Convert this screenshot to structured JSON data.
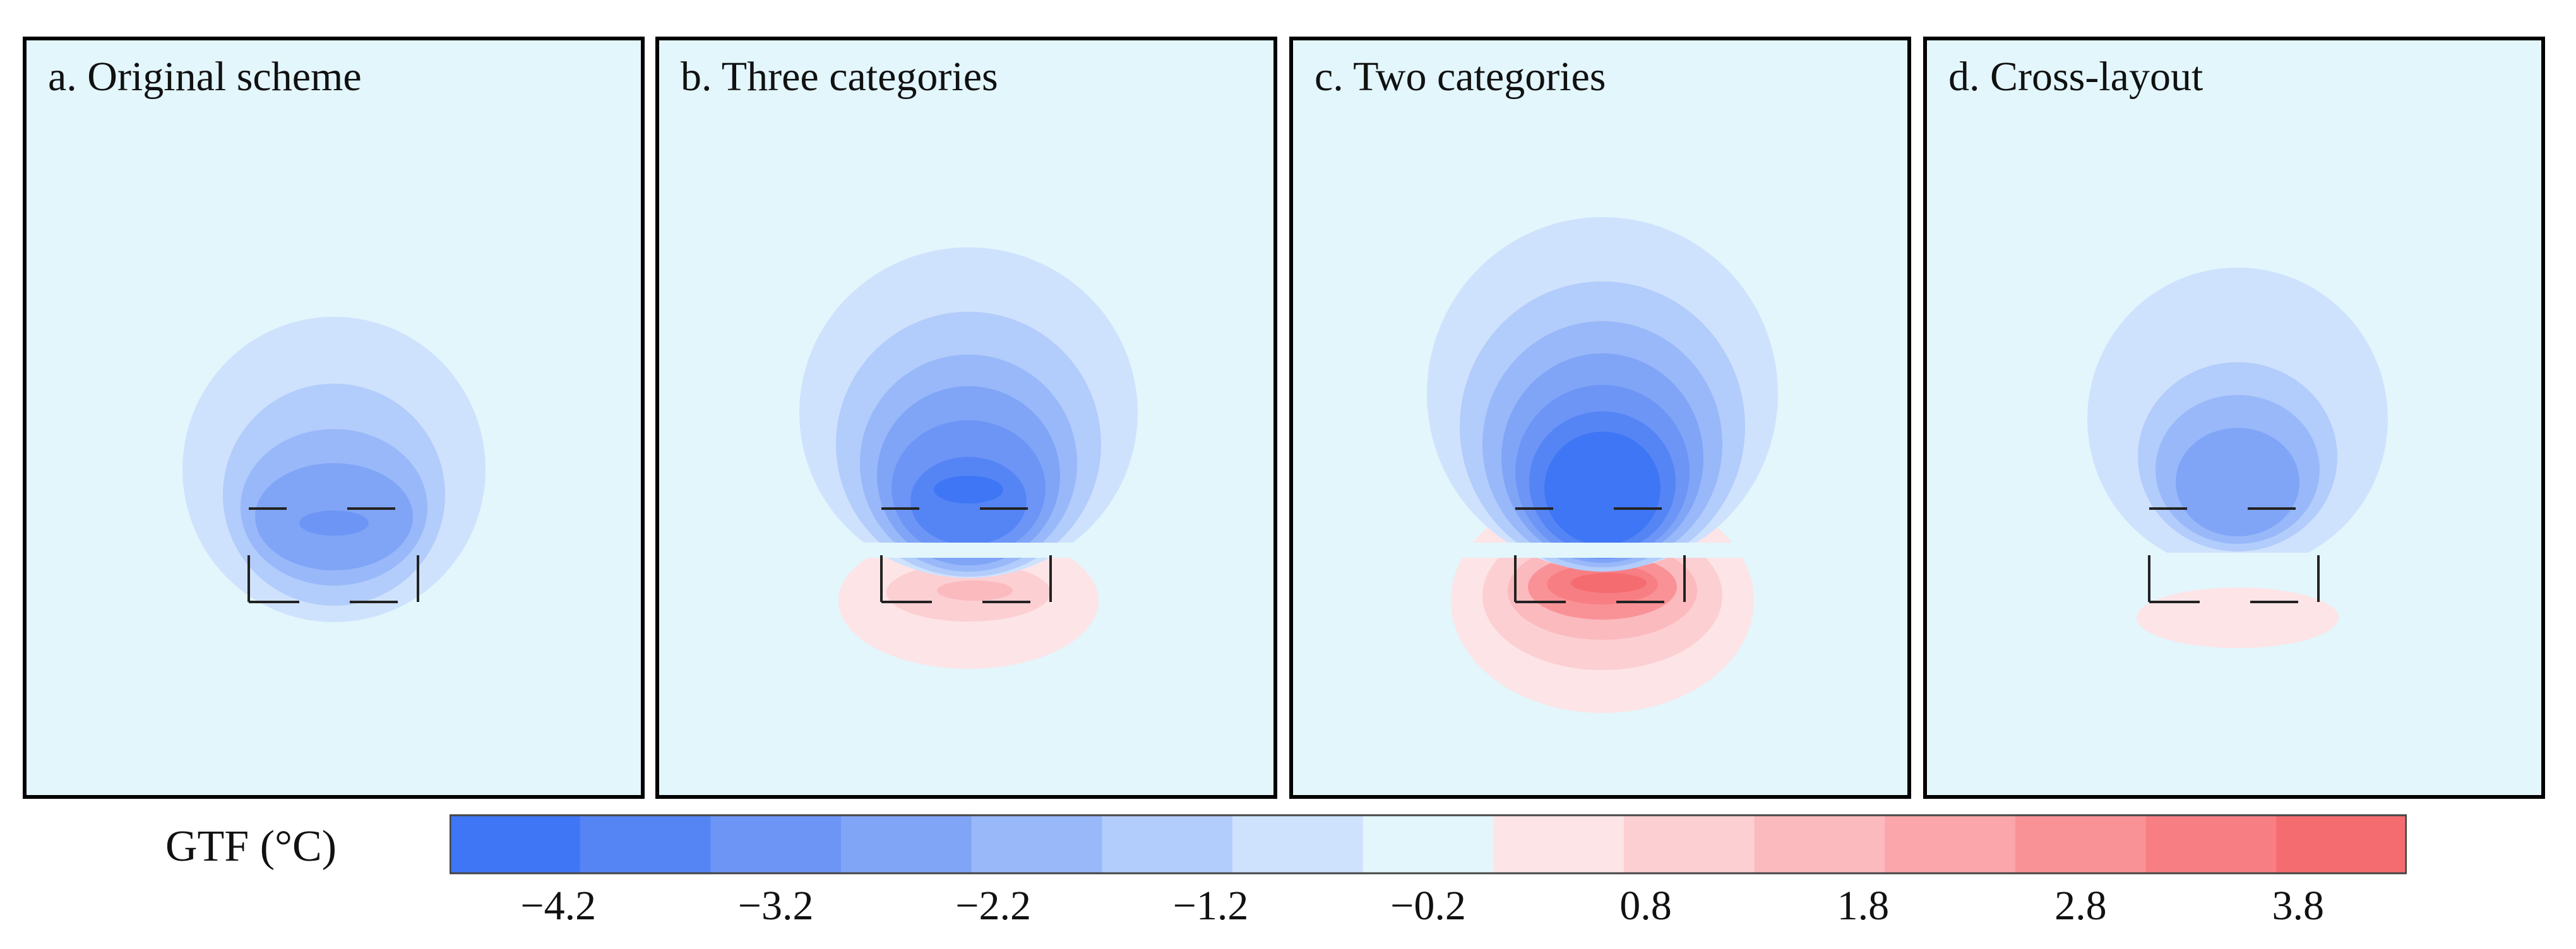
{
  "panels": [
    {
      "title": "a. Original scheme",
      "variant": "original"
    },
    {
      "title": "b. Three categories",
      "variant": "three"
    },
    {
      "title": "c. Two categories",
      "variant": "two"
    },
    {
      "title": "d. Cross-layout",
      "variant": "cross"
    }
  ],
  "colorbar": {
    "label": "GTF (°C)",
    "min": -4.7,
    "max": 4.3,
    "ticks": [
      "−4.2",
      "−3.2",
      "−2.2",
      "−1.2",
      "−0.2",
      "0.8",
      "1.8",
      "2.8",
      "3.8"
    ],
    "tick_values": [
      -4.2,
      -3.2,
      -2.2,
      -1.2,
      -0.2,
      0.8,
      1.8,
      2.8,
      3.8
    ],
    "colors": [
      "#3f76f5",
      "#5585f5",
      "#6c95f6",
      "#80a5f7",
      "#98b8f9",
      "#b2ccfb",
      "#cfe2fd",
      "#e2f6fc",
      "#fde4e6",
      "#fccfd2",
      "#fbbabe",
      "#faa6ab",
      "#f99297",
      "#f77f84",
      "#f56c70"
    ]
  }
}
